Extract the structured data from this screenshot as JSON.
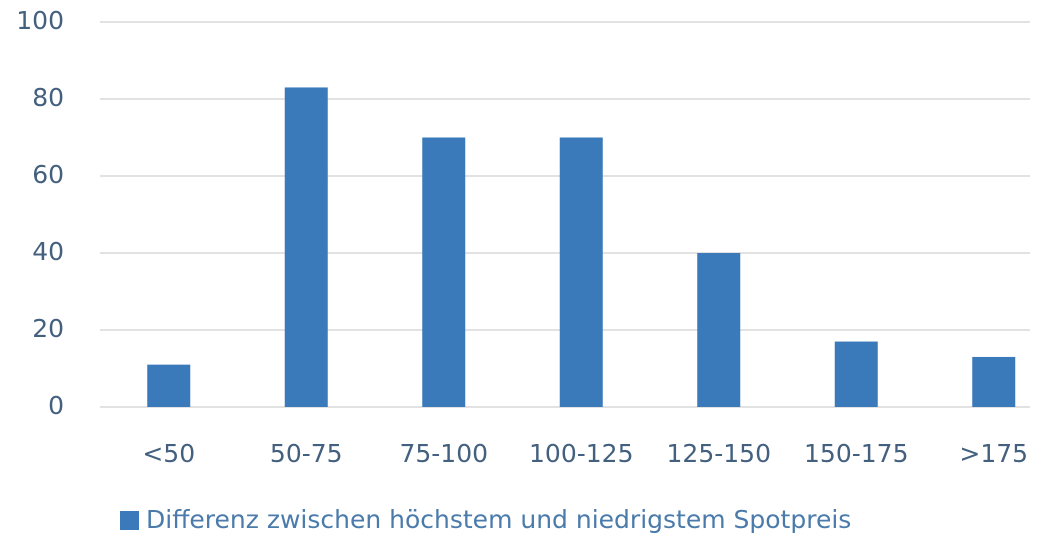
{
  "chart_data": {
    "type": "bar",
    "categories": [
      "<50",
      "50-75",
      "75-100",
      "100-125",
      "125-150",
      "150-175",
      ">175"
    ],
    "series": [
      {
        "name": "Differenz zwischen höchstem und niedrigstem Spotpreis",
        "color": "#3a7aba",
        "values": [
          11,
          83,
          70,
          70,
          40,
          17,
          13
        ]
      }
    ],
    "ylim": [
      0,
      100
    ],
    "yticks": [
      0,
      20,
      40,
      60,
      80,
      100
    ],
    "grid": true,
    "legend": "bottom"
  }
}
